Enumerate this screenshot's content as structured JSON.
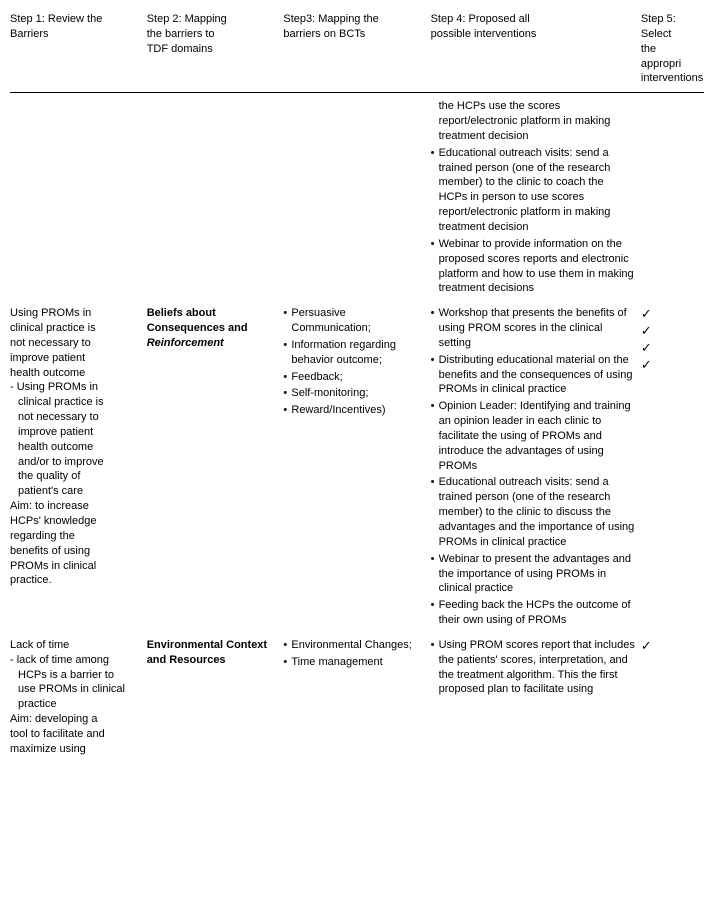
{
  "headers": {
    "c1": "Step 1: Review the Barriers",
    "c2a": "Step 2: Mapping",
    "c2b": "the barriers to",
    "c2c": "TDF domains",
    "c3a": "Step3: Mapping the",
    "c3b": "barriers on BCTs",
    "c4a": "Step 4: Proposed all",
    "c4b": "possible interventions",
    "c5a": "Step 5: Select",
    "c5b": "the appropri",
    "c5c": "interventions"
  },
  "row0": {
    "c4_items": [
      "the HCPs use the scores report/electronic platform in making treatment decision",
      "Educational outreach visits: send a trained person (one of the research member) to the clinic to coach the HCPs in person to use scores report/electronic platform in making treatment decision",
      "Webinar to provide information on the proposed scores reports and electronic platform and how to use them in making treatment decisions"
    ]
  },
  "row1": {
    "c1_lines": [
      "Using PROMs in",
      "clinical practice is",
      "not necessary to",
      "improve patient",
      "health outcome"
    ],
    "c1_sub": [
      "- Using PROMs in",
      "clinical practice is",
      "not necessary to",
      "improve patient",
      "health outcome",
      "and/or to improve",
      "the quality of",
      "patient's care"
    ],
    "c1_aim": [
      "Aim: to increase",
      "HCPs' knowledge",
      "regarding the",
      "benefits of using",
      "PROMs in clinical",
      "practice."
    ],
    "c2_a": "Beliefs about",
    "c2_b": "Consequences and",
    "c2_c": "Reinforcement",
    "c3_items": [
      "Persuasive Communication;",
      "Information regarding behavior outcome;",
      "Feedback;",
      "Self-monitoring;",
      "Reward/Incentives)"
    ],
    "c4_items": [
      "Workshop that presents the benefits of using PROM scores in the clinical setting",
      "Distributing educational material on the benefits and the consequences of using PROMs in clinical practice",
      "Opinion Leader: Identifying and training an opinion leader in each clinic to facilitate the using of PROMs and introduce the advantages of using PROMs",
      "Educational outreach visits: send a trained person (one of the research member) to the clinic to discuss the advantages and the importance of using PROMs in clinical practice",
      "Webinar to present the advantages and the importance of using PROMs in clinical practice",
      "Feeding back the HCPs the outcome of their own using of PROMs"
    ],
    "c5_checks": [
      "✓",
      "✓",
      "✓",
      "✓"
    ]
  },
  "row2": {
    "c1_lines": [
      "Lack of time"
    ],
    "c1_sub": [
      "- lack of time among",
      "HCPs is a barrier to",
      "use PROMs in clinical",
      "practice"
    ],
    "c1_aim": [
      "Aim: developing a",
      "tool to facilitate and",
      "maximize using"
    ],
    "c2_a": "Environmental Context",
    "c2_b": "and Resources",
    "c3_items": [
      "Environmental Changes;",
      "Time management"
    ],
    "c4_items": [
      "Using PROM scores report that includes the patients' scores, interpretation, and the treatment algorithm. This the first proposed plan to facilitate using"
    ],
    "c5_checks": [
      "✓"
    ]
  }
}
